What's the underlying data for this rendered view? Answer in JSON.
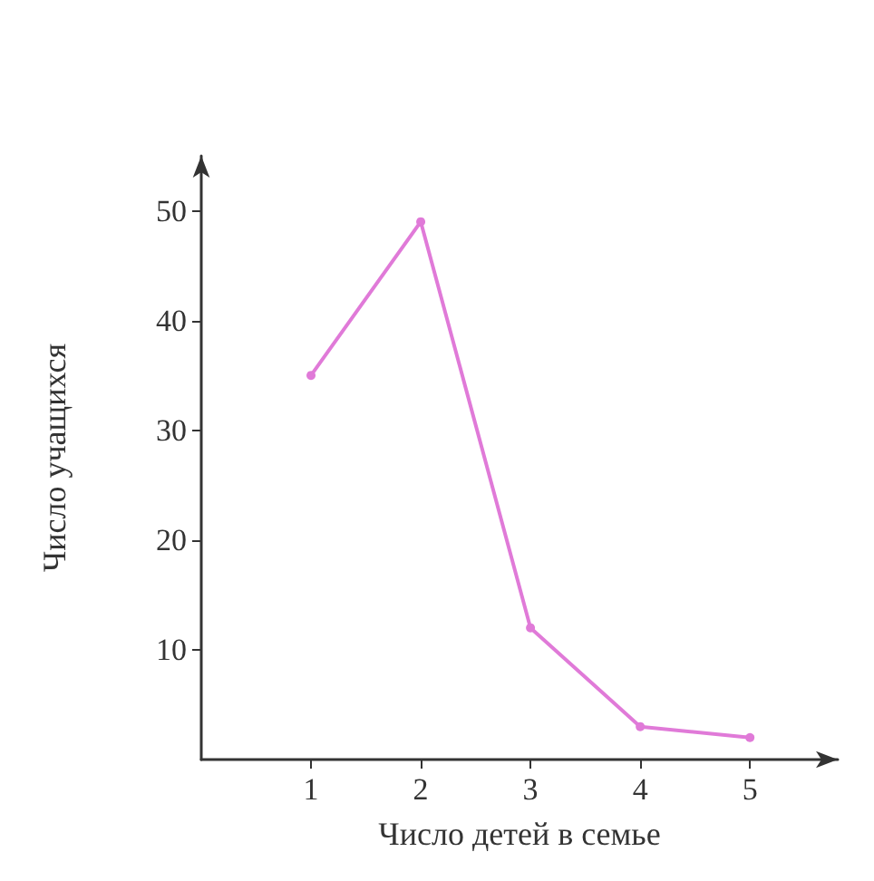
{
  "chart_data": {
    "type": "line",
    "xlabel": "Число детей в семье",
    "ylabel": "Число учащихся",
    "x": [
      1,
      2,
      3,
      4,
      5
    ],
    "series": [
      {
        "color": "#e07ad8",
        "values": [
          35,
          49,
          12,
          3,
          2
        ]
      }
    ],
    "xlim": [
      0,
      5.8
    ],
    "xticks": [
      1,
      2,
      3,
      4,
      5
    ],
    "ylim": [
      0,
      55
    ],
    "yticks": [
      10,
      20,
      30,
      40,
      50
    ],
    "grid": false,
    "marker": "circle",
    "line_style": "solid"
  }
}
